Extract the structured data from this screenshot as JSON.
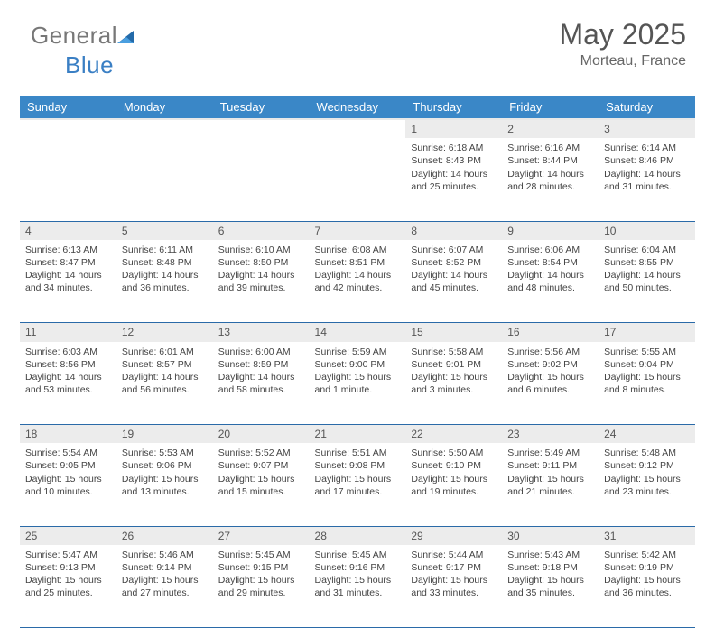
{
  "brand": {
    "part1": "General",
    "part2": "Blue"
  },
  "header": {
    "month_year": "May 2025",
    "location": "Morteau, France"
  },
  "weekdays": [
    "Sunday",
    "Monday",
    "Tuesday",
    "Wednesday",
    "Thursday",
    "Friday",
    "Saturday"
  ],
  "colors": {
    "header_bg": "#3a87c7",
    "daynum_bg": "#ececec",
    "row_divider": "#2a6aa8",
    "brand_blue": "#3a7fc4"
  },
  "weeks": [
    {
      "nums": [
        "",
        "",
        "",
        "",
        "1",
        "2",
        "3"
      ],
      "cells": [
        null,
        null,
        null,
        null,
        {
          "sr": "Sunrise: 6:18 AM",
          "ss": "Sunset: 8:43 PM",
          "d1": "Daylight: 14 hours",
          "d2": "and 25 minutes."
        },
        {
          "sr": "Sunrise: 6:16 AM",
          "ss": "Sunset: 8:44 PM",
          "d1": "Daylight: 14 hours",
          "d2": "and 28 minutes."
        },
        {
          "sr": "Sunrise: 6:14 AM",
          "ss": "Sunset: 8:46 PM",
          "d1": "Daylight: 14 hours",
          "d2": "and 31 minutes."
        }
      ]
    },
    {
      "nums": [
        "4",
        "5",
        "6",
        "7",
        "8",
        "9",
        "10"
      ],
      "cells": [
        {
          "sr": "Sunrise: 6:13 AM",
          "ss": "Sunset: 8:47 PM",
          "d1": "Daylight: 14 hours",
          "d2": "and 34 minutes."
        },
        {
          "sr": "Sunrise: 6:11 AM",
          "ss": "Sunset: 8:48 PM",
          "d1": "Daylight: 14 hours",
          "d2": "and 36 minutes."
        },
        {
          "sr": "Sunrise: 6:10 AM",
          "ss": "Sunset: 8:50 PM",
          "d1": "Daylight: 14 hours",
          "d2": "and 39 minutes."
        },
        {
          "sr": "Sunrise: 6:08 AM",
          "ss": "Sunset: 8:51 PM",
          "d1": "Daylight: 14 hours",
          "d2": "and 42 minutes."
        },
        {
          "sr": "Sunrise: 6:07 AM",
          "ss": "Sunset: 8:52 PM",
          "d1": "Daylight: 14 hours",
          "d2": "and 45 minutes."
        },
        {
          "sr": "Sunrise: 6:06 AM",
          "ss": "Sunset: 8:54 PM",
          "d1": "Daylight: 14 hours",
          "d2": "and 48 minutes."
        },
        {
          "sr": "Sunrise: 6:04 AM",
          "ss": "Sunset: 8:55 PM",
          "d1": "Daylight: 14 hours",
          "d2": "and 50 minutes."
        }
      ]
    },
    {
      "nums": [
        "11",
        "12",
        "13",
        "14",
        "15",
        "16",
        "17"
      ],
      "cells": [
        {
          "sr": "Sunrise: 6:03 AM",
          "ss": "Sunset: 8:56 PM",
          "d1": "Daylight: 14 hours",
          "d2": "and 53 minutes."
        },
        {
          "sr": "Sunrise: 6:01 AM",
          "ss": "Sunset: 8:57 PM",
          "d1": "Daylight: 14 hours",
          "d2": "and 56 minutes."
        },
        {
          "sr": "Sunrise: 6:00 AM",
          "ss": "Sunset: 8:59 PM",
          "d1": "Daylight: 14 hours",
          "d2": "and 58 minutes."
        },
        {
          "sr": "Sunrise: 5:59 AM",
          "ss": "Sunset: 9:00 PM",
          "d1": "Daylight: 15 hours",
          "d2": "and 1 minute."
        },
        {
          "sr": "Sunrise: 5:58 AM",
          "ss": "Sunset: 9:01 PM",
          "d1": "Daylight: 15 hours",
          "d2": "and 3 minutes."
        },
        {
          "sr": "Sunrise: 5:56 AM",
          "ss": "Sunset: 9:02 PM",
          "d1": "Daylight: 15 hours",
          "d2": "and 6 minutes."
        },
        {
          "sr": "Sunrise: 5:55 AM",
          "ss": "Sunset: 9:04 PM",
          "d1": "Daylight: 15 hours",
          "d2": "and 8 minutes."
        }
      ]
    },
    {
      "nums": [
        "18",
        "19",
        "20",
        "21",
        "22",
        "23",
        "24"
      ],
      "cells": [
        {
          "sr": "Sunrise: 5:54 AM",
          "ss": "Sunset: 9:05 PM",
          "d1": "Daylight: 15 hours",
          "d2": "and 10 minutes."
        },
        {
          "sr": "Sunrise: 5:53 AM",
          "ss": "Sunset: 9:06 PM",
          "d1": "Daylight: 15 hours",
          "d2": "and 13 minutes."
        },
        {
          "sr": "Sunrise: 5:52 AM",
          "ss": "Sunset: 9:07 PM",
          "d1": "Daylight: 15 hours",
          "d2": "and 15 minutes."
        },
        {
          "sr": "Sunrise: 5:51 AM",
          "ss": "Sunset: 9:08 PM",
          "d1": "Daylight: 15 hours",
          "d2": "and 17 minutes."
        },
        {
          "sr": "Sunrise: 5:50 AM",
          "ss": "Sunset: 9:10 PM",
          "d1": "Daylight: 15 hours",
          "d2": "and 19 minutes."
        },
        {
          "sr": "Sunrise: 5:49 AM",
          "ss": "Sunset: 9:11 PM",
          "d1": "Daylight: 15 hours",
          "d2": "and 21 minutes."
        },
        {
          "sr": "Sunrise: 5:48 AM",
          "ss": "Sunset: 9:12 PM",
          "d1": "Daylight: 15 hours",
          "d2": "and 23 minutes."
        }
      ]
    },
    {
      "nums": [
        "25",
        "26",
        "27",
        "28",
        "29",
        "30",
        "31"
      ],
      "cells": [
        {
          "sr": "Sunrise: 5:47 AM",
          "ss": "Sunset: 9:13 PM",
          "d1": "Daylight: 15 hours",
          "d2": "and 25 minutes."
        },
        {
          "sr": "Sunrise: 5:46 AM",
          "ss": "Sunset: 9:14 PM",
          "d1": "Daylight: 15 hours",
          "d2": "and 27 minutes."
        },
        {
          "sr": "Sunrise: 5:45 AM",
          "ss": "Sunset: 9:15 PM",
          "d1": "Daylight: 15 hours",
          "d2": "and 29 minutes."
        },
        {
          "sr": "Sunrise: 5:45 AM",
          "ss": "Sunset: 9:16 PM",
          "d1": "Daylight: 15 hours",
          "d2": "and 31 minutes."
        },
        {
          "sr": "Sunrise: 5:44 AM",
          "ss": "Sunset: 9:17 PM",
          "d1": "Daylight: 15 hours",
          "d2": "and 33 minutes."
        },
        {
          "sr": "Sunrise: 5:43 AM",
          "ss": "Sunset: 9:18 PM",
          "d1": "Daylight: 15 hours",
          "d2": "and 35 minutes."
        },
        {
          "sr": "Sunrise: 5:42 AM",
          "ss": "Sunset: 9:19 PM",
          "d1": "Daylight: 15 hours",
          "d2": "and 36 minutes."
        }
      ]
    }
  ]
}
